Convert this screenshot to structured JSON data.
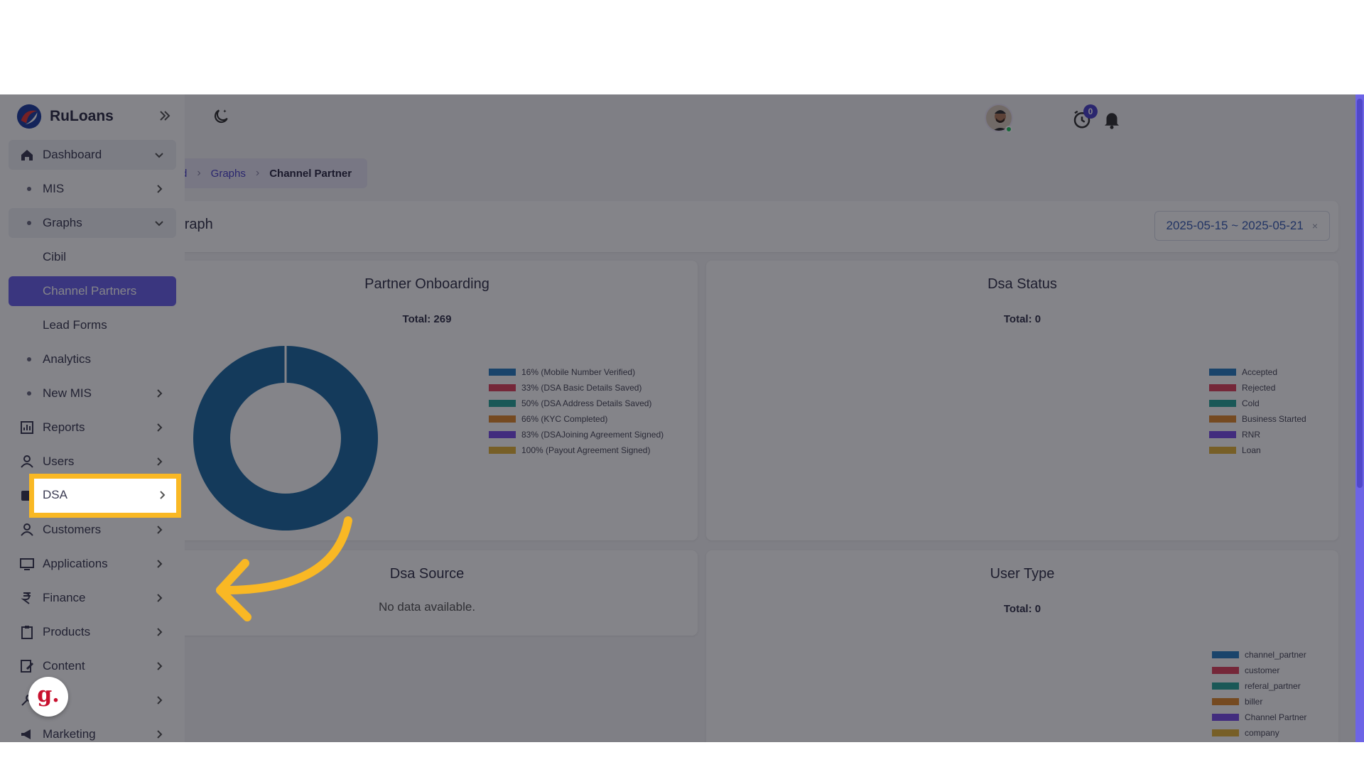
{
  "app": {
    "name": "RuLoans"
  },
  "topbar": {
    "notification_count": "0"
  },
  "breadcrumb": {
    "items": [
      "rd",
      "Graphs"
    ],
    "current": "Channel Partner"
  },
  "page": {
    "title": "r Graph",
    "date_range": "2025-05-15 ~ 2025-05-21",
    "clear_icon": "×"
  },
  "sidebar": {
    "items": [
      {
        "label": "Dashboard",
        "icon": "home-icon"
      },
      {
        "label": "MIS"
      },
      {
        "label": "Graphs"
      },
      {
        "label": "Cibil"
      },
      {
        "label": "Channel Partners"
      },
      {
        "label": "Lead Forms"
      },
      {
        "label": "Analytics"
      },
      {
        "label": "New MIS"
      },
      {
        "label": "Reports",
        "icon": "chart-icon"
      },
      {
        "label": "Users",
        "icon": "user-icon"
      },
      {
        "label": "DSA",
        "icon": "id-card-icon"
      },
      {
        "label": "Customers",
        "icon": "user-icon"
      },
      {
        "label": "Applications",
        "icon": "monitor-icon"
      },
      {
        "label": "Finance",
        "icon": "rupee-icon"
      },
      {
        "label": "Products",
        "icon": "clipboard-icon"
      },
      {
        "label": "Content",
        "icon": "edit-icon"
      },
      {
        "label": "s",
        "icon": "tools-icon"
      },
      {
        "label": "Marketing",
        "icon": "megaphone-icon"
      }
    ]
  },
  "cards": {
    "partner_onboarding": {
      "title": "Partner Onboarding",
      "total": "Total: 269",
      "legend": [
        "16% (Mobile Number Verified)",
        "33% (DSA Basic Details Saved)",
        "50% (DSA Address Details Saved)",
        "66% (KYC Completed)",
        "83% (DSAJoining Agreement Signed)",
        "100% (Payout Agreement Signed)"
      ]
    },
    "dsa_status": {
      "title": "Dsa Status",
      "total": "Total: 0",
      "legend": [
        "Accepted",
        "Rejected",
        "Cold",
        "Business Started",
        "RNR",
        "Loan"
      ]
    },
    "dsa_source": {
      "title": "Dsa Source",
      "empty": "No data available."
    },
    "user_type": {
      "title": "User Type",
      "total": "Total: 0",
      "legend": [
        "channel_partner",
        "customer",
        "referal_partner",
        "biller",
        "Channel Partner",
        "company"
      ]
    }
  },
  "colors": {
    "legend": [
      "#2a7ec2",
      "#e0455f",
      "#2aa79b",
      "#e08a2e",
      "#7b4ee8",
      "#e5b43a"
    ],
    "accent": "#6a62ea",
    "highlight": "#f9b824",
    "donut": "#1f6aa3"
  },
  "chart_data": {
    "type": "pie",
    "title": "Partner Onboarding",
    "categories": [
      "16% (Mobile Number Verified)",
      "33% (DSA Basic Details Saved)",
      "50% (DSA Address Details Saved)",
      "66% (KYC Completed)",
      "83% (DSAJoining Agreement Signed)",
      "100% (Payout Agreement Signed)"
    ],
    "values": [
      269,
      0,
      0,
      0,
      0,
      0
    ],
    "total": 269
  }
}
